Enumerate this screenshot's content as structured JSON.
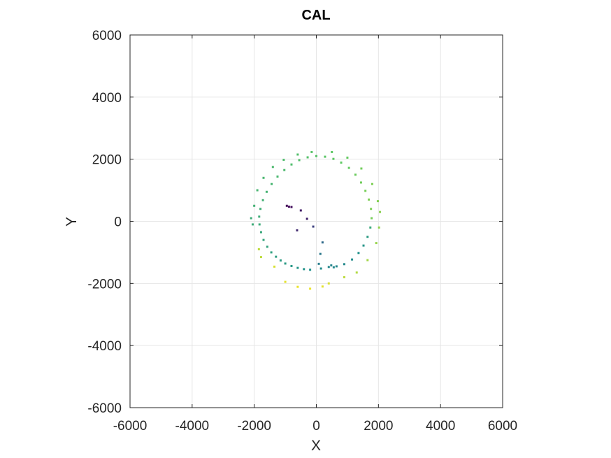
{
  "chart_data": {
    "type": "scatter",
    "title": "CAL",
    "xlabel": "X",
    "ylabel": "Y",
    "xlim": [
      -6000,
      6000
    ],
    "ylim": [
      -6000,
      6000
    ],
    "xticks": [
      -6000,
      -4000,
      -2000,
      0,
      2000,
      4000,
      6000
    ],
    "yticks": [
      -6000,
      -4000,
      -2000,
      0,
      2000,
      4000,
      6000
    ],
    "xtick_labels": [
      "-6000",
      "-4000",
      "-2000",
      "0",
      "2000",
      "4000",
      "6000"
    ],
    "ytick_labels": [
      "-6000",
      "-4000",
      "-2000",
      "0",
      "2000",
      "4000",
      "6000"
    ],
    "grid": true,
    "colormap": "viridis",
    "series": [
      {
        "points": [
          {
            "x": -950,
            "y": 500,
            "c": 0.02
          },
          {
            "x": -880,
            "y": 470,
            "c": 0.03
          },
          {
            "x": -800,
            "y": 460,
            "c": 0.04
          },
          {
            "x": -500,
            "y": 350,
            "c": 0.08
          },
          {
            "x": -300,
            "y": 80,
            "c": 0.1
          },
          {
            "x": -620,
            "y": -290,
            "c": 0.12
          },
          {
            "x": -100,
            "y": -170,
            "c": 0.2
          },
          {
            "x": 200,
            "y": -680,
            "c": 0.35
          },
          {
            "x": 130,
            "y": -1050,
            "c": 0.4
          },
          {
            "x": 80,
            "y": -1370,
            "c": 0.42
          },
          {
            "x": -200,
            "y": -1560,
            "c": 0.5
          },
          {
            "x": -400,
            "y": -1540,
            "c": 0.51
          },
          {
            "x": -600,
            "y": -1500,
            "c": 0.52
          },
          {
            "x": -800,
            "y": -1440,
            "c": 0.53
          },
          {
            "x": -1000,
            "y": -1360,
            "c": 0.54
          },
          {
            "x": -1150,
            "y": -1260,
            "c": 0.55
          },
          {
            "x": -1300,
            "y": -1140,
            "c": 0.56
          },
          {
            "x": -1450,
            "y": -1000,
            "c": 0.57
          },
          {
            "x": -1580,
            "y": -820,
            "c": 0.58
          },
          {
            "x": -1700,
            "y": -600,
            "c": 0.59
          },
          {
            "x": -1780,
            "y": -350,
            "c": 0.6
          },
          {
            "x": -1830,
            "y": -100,
            "c": 0.61
          },
          {
            "x": -1840,
            "y": 150,
            "c": 0.62
          },
          {
            "x": -1800,
            "y": 400,
            "c": 0.63
          },
          {
            "x": -1720,
            "y": 680,
            "c": 0.64
          },
          {
            "x": -1600,
            "y": 950,
            "c": 0.65
          },
          {
            "x": -1440,
            "y": 1200,
            "c": 0.66
          },
          {
            "x": -1250,
            "y": 1440,
            "c": 0.67
          },
          {
            "x": -1030,
            "y": 1650,
            "c": 0.68
          },
          {
            "x": -800,
            "y": 1830,
            "c": 0.69
          },
          {
            "x": -550,
            "y": 1970,
            "c": 0.7
          },
          {
            "x": -280,
            "y": 2060,
            "c": 0.71
          },
          {
            "x": 0,
            "y": 2100,
            "c": 0.72
          },
          {
            "x": 280,
            "y": 2080,
            "c": 0.73
          },
          {
            "x": 550,
            "y": 2010,
            "c": 0.74
          },
          {
            "x": 800,
            "y": 1890,
            "c": 0.75
          },
          {
            "x": 1050,
            "y": 1720,
            "c": 0.76
          },
          {
            "x": 1260,
            "y": 1500,
            "c": 0.77
          },
          {
            "x": 1440,
            "y": 1250,
            "c": 0.78
          },
          {
            "x": 1580,
            "y": 980,
            "c": 0.79
          },
          {
            "x": 1690,
            "y": 700,
            "c": 0.8
          },
          {
            "x": 1760,
            "y": 400,
            "c": 0.8
          },
          {
            "x": 1780,
            "y": 100,
            "c": 0.79
          },
          {
            "x": 1740,
            "y": -200,
            "c": 0.6
          },
          {
            "x": 1650,
            "y": -500,
            "c": 0.55
          },
          {
            "x": 1520,
            "y": -780,
            "c": 0.52
          },
          {
            "x": 1360,
            "y": -1020,
            "c": 0.5
          },
          {
            "x": 1150,
            "y": -1230,
            "c": 0.48
          },
          {
            "x": 900,
            "y": -1380,
            "c": 0.47
          },
          {
            "x": 650,
            "y": -1450,
            "c": 0.46
          },
          {
            "x": 400,
            "y": -1470,
            "c": 0.46
          },
          {
            "x": 150,
            "y": -1520,
            "c": 0.48
          },
          {
            "x": 480,
            "y": -1420,
            "c": 0.45
          },
          {
            "x": 560,
            "y": -1480,
            "c": 0.47
          },
          {
            "x": -2050,
            "y": -100,
            "c": 0.62
          },
          {
            "x": -2000,
            "y": 500,
            "c": 0.64
          },
          {
            "x": -1900,
            "y": 1000,
            "c": 0.66
          },
          {
            "x": -1700,
            "y": 1400,
            "c": 0.67
          },
          {
            "x": -1400,
            "y": 1750,
            "c": 0.68
          },
          {
            "x": -1050,
            "y": 1980,
            "c": 0.69
          },
          {
            "x": -600,
            "y": 2150,
            "c": 0.7
          },
          {
            "x": -150,
            "y": 2230,
            "c": 0.72
          },
          {
            "x": 500,
            "y": 2230,
            "c": 0.74
          },
          {
            "x": 1000,
            "y": 2050,
            "c": 0.76
          },
          {
            "x": 1450,
            "y": 1700,
            "c": 0.78
          },
          {
            "x": 1800,
            "y": 1200,
            "c": 0.8
          },
          {
            "x": 1980,
            "y": 650,
            "c": 0.81
          },
          {
            "x": 2050,
            "y": 300,
            "c": 0.82
          },
          {
            "x": 2020,
            "y": -200,
            "c": 0.83
          },
          {
            "x": 1930,
            "y": -700,
            "c": 0.84
          },
          {
            "x": 1650,
            "y": -1250,
            "c": 0.86
          },
          {
            "x": 1300,
            "y": -1650,
            "c": 0.88
          },
          {
            "x": 900,
            "y": -1800,
            "c": 0.9
          },
          {
            "x": 400,
            "y": -2000,
            "c": 0.94
          },
          {
            "x": 200,
            "y": -2100,
            "c": 0.96
          },
          {
            "x": -200,
            "y": -2170,
            "c": 0.97
          },
          {
            "x": -600,
            "y": -2110,
            "c": 0.97
          },
          {
            "x": -1000,
            "y": -1950,
            "c": 0.96
          },
          {
            "x": -1350,
            "y": -1460,
            "c": 0.94
          },
          {
            "x": -1780,
            "y": -1150,
            "c": 0.9
          },
          {
            "x": -1850,
            "y": -900,
            "c": 0.9
          },
          {
            "x": -2100,
            "y": 100,
            "c": 0.62
          }
        ]
      }
    ]
  }
}
